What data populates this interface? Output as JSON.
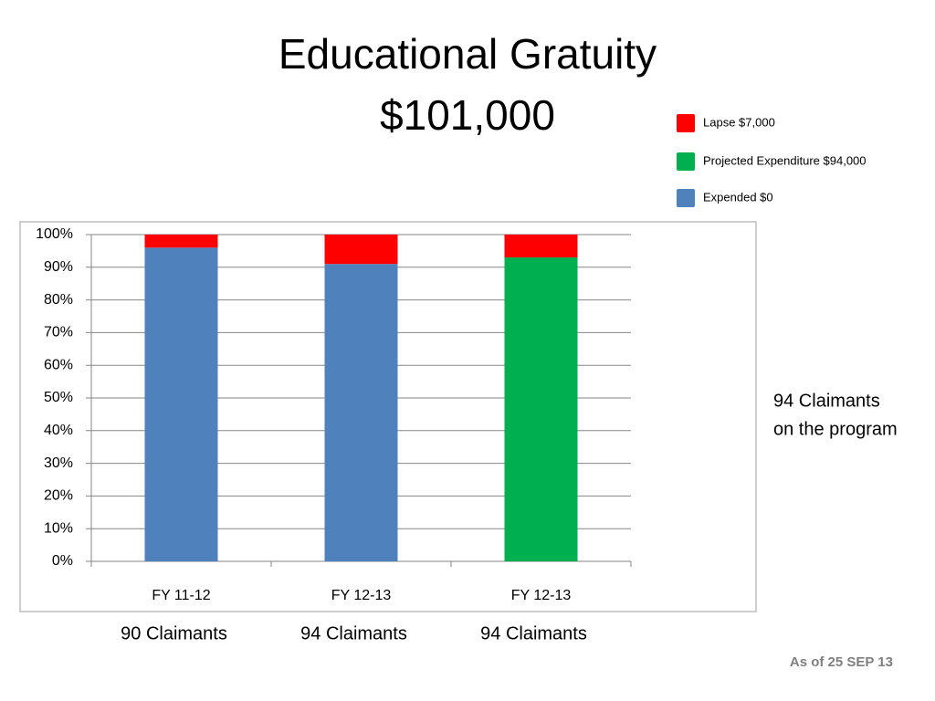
{
  "chart_data": {
    "type": "stacked_bar_percent",
    "title": "Educational Gratuity",
    "subtitle": "$101,000",
    "categories": [
      "FY 11-12",
      "FY 12-13",
      "FY 12-13"
    ],
    "category_notes": [
      "90 Claimants",
      "94 Claimants",
      "94 Claimants"
    ],
    "series": [
      {
        "name": "Expended $0",
        "color": "#4f81bd",
        "values": [
          96,
          91,
          0
        ]
      },
      {
        "name": "Projected Expenditure $94,000",
        "color": "#00b050",
        "values": [
          0,
          0,
          93
        ]
      },
      {
        "name": "Lapse $7,000",
        "color": "#ff0000",
        "values": [
          4,
          9,
          7
        ]
      }
    ],
    "ylim": [
      0,
      100
    ],
    "yticks": [
      {
        "value": 0,
        "label": "0%"
      },
      {
        "value": 10,
        "label": "10%"
      },
      {
        "value": 20,
        "label": "20%"
      },
      {
        "value": 30,
        "label": "30%"
      },
      {
        "value": 40,
        "label": "40%"
      },
      {
        "value": 50,
        "label": "50%"
      },
      {
        "value": 60,
        "label": "60%"
      },
      {
        "value": 70,
        "label": "70%"
      },
      {
        "value": 80,
        "label": "80%"
      },
      {
        "value": 90,
        "label": "90%"
      },
      {
        "value": 100,
        "label": "100%"
      }
    ],
    "grid": true,
    "legend_position": "top-right",
    "annotation": [
      "94 Claimants",
      "on the program"
    ],
    "footer": "As of  25 SEP 13"
  }
}
